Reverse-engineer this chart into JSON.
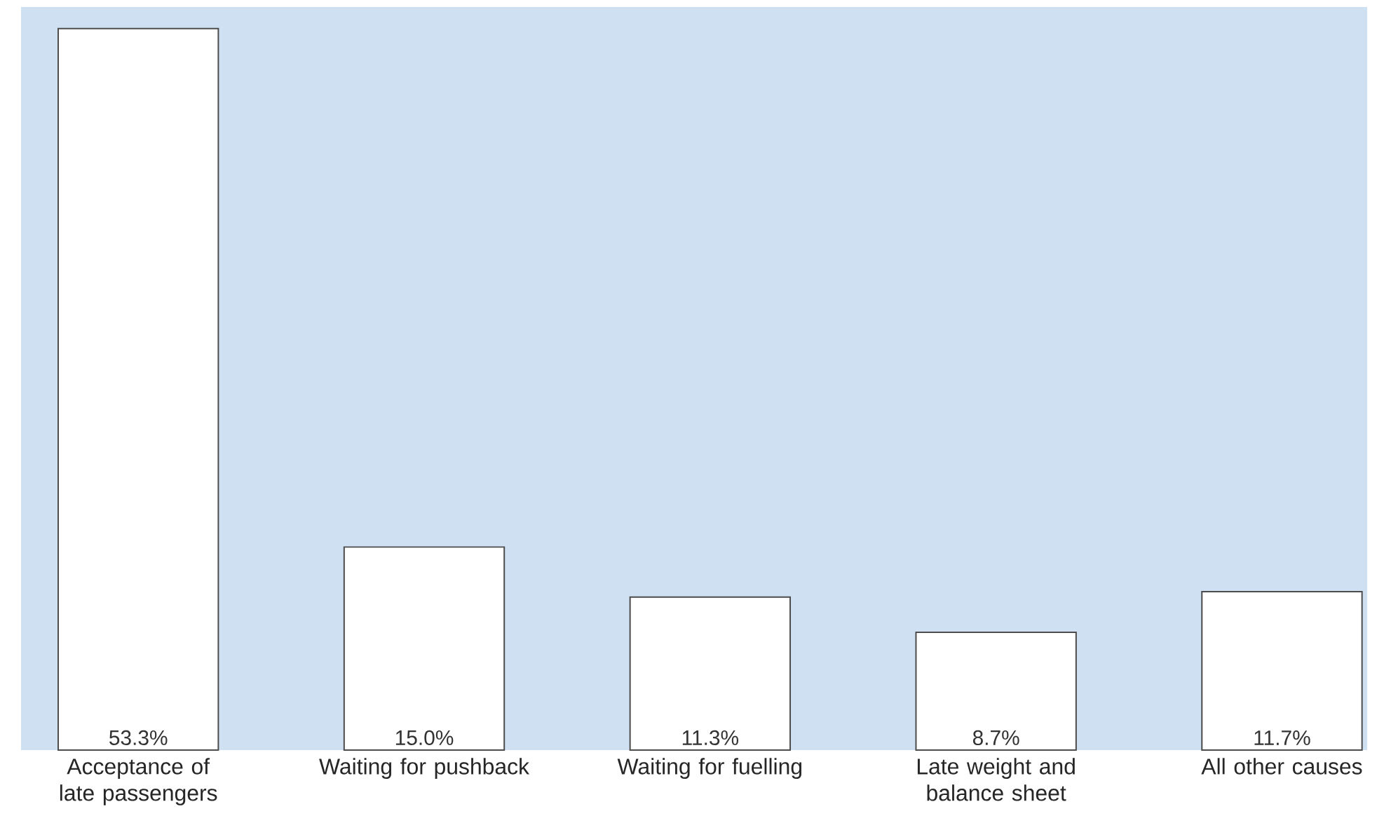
{
  "chart_data": {
    "type": "bar",
    "categories": [
      "Acceptance of late passengers",
      "Waiting for pushback",
      "Waiting for fuelling",
      "Late weight and balance sheet",
      "All other causes"
    ],
    "values": [
      53.3,
      15.0,
      11.3,
      8.7,
      11.7
    ],
    "value_labels": [
      "53.3%",
      "15.0%",
      "11.3%",
      "8.7%",
      "11.7%"
    ],
    "color": "#ffffff"
  }
}
